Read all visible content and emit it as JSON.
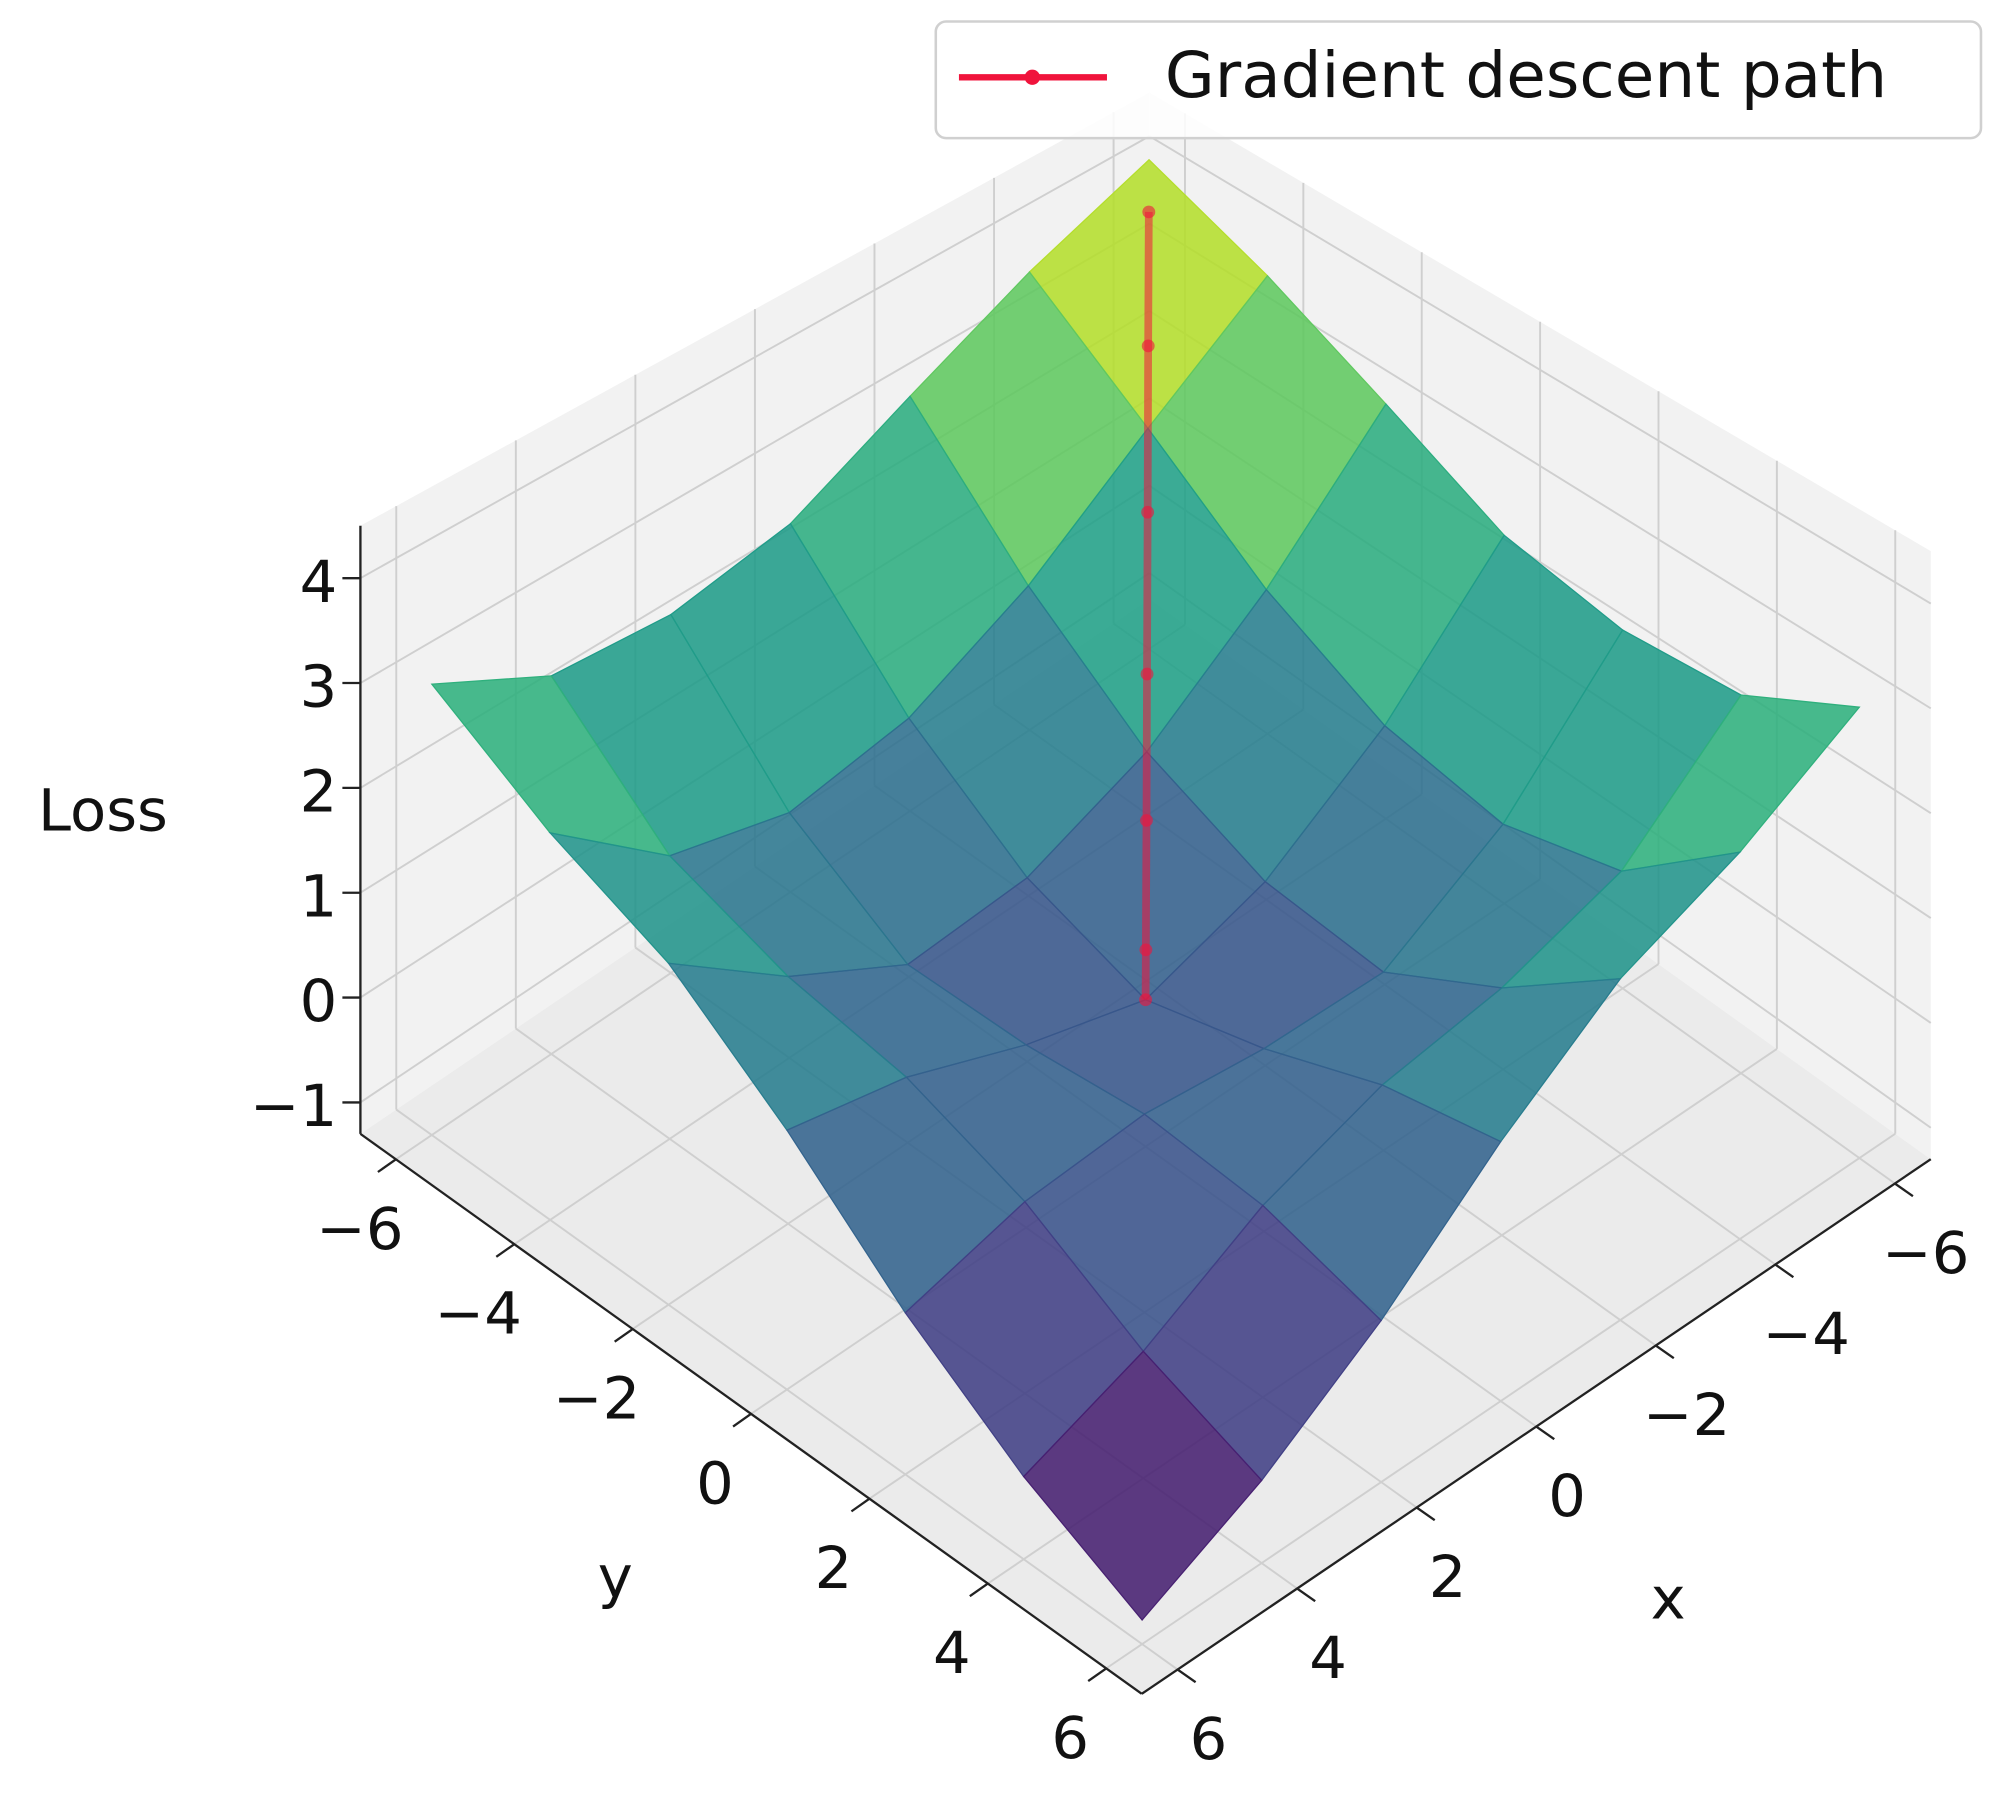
{
  "chart_data": {
    "type": "surface",
    "xlabel": "x",
    "ylabel": "y",
    "zlabel": "Loss",
    "colormap": "viridis",
    "x": [
      -6,
      -4,
      -2,
      0,
      2,
      4,
      6
    ],
    "y": [
      -6,
      -4,
      -2,
      0,
      2,
      4,
      6
    ],
    "z": [
      [
        4.2,
        3.7,
        3.1,
        2.5,
        2.3,
        2.4,
        3.0
      ],
      [
        3.7,
        2.8,
        1.9,
        1.3,
        1.1,
        1.4,
        2.3
      ],
      [
        3.1,
        1.9,
        1.0,
        0.5,
        0.4,
        1.0,
        1.8
      ],
      [
        2.5,
        1.3,
        0.5,
        0.1,
        0.4,
        0.8,
        1.0
      ],
      [
        2.3,
        1.1,
        0.4,
        0.4,
        0.5,
        0.4,
        0.1
      ],
      [
        2.4,
        1.4,
        1.0,
        0.8,
        0.4,
        -0.2,
        -0.6
      ],
      [
        3.0,
        2.3,
        1.8,
        1.0,
        0.1,
        -0.6,
        -1.1
      ]
    ],
    "xlim": [
      -6.6,
      6.6
    ],
    "ylim": [
      -6.6,
      6.6
    ],
    "zlim": [
      -1.3,
      4.5
    ],
    "xticks": [
      {
        "value": -6,
        "label": "−6"
      },
      {
        "value": -4,
        "label": "−4"
      },
      {
        "value": -2,
        "label": "−2"
      },
      0,
      2,
      4,
      6
    ],
    "yticks": [
      {
        "value": -6,
        "label": "−6"
      },
      {
        "value": -4,
        "label": "−4"
      },
      {
        "value": -2,
        "label": "−2"
      },
      0,
      2,
      4,
      6
    ],
    "zticks": [
      {
        "value": -1,
        "label": "−1"
      },
      0,
      1,
      2,
      3,
      4
    ],
    "grid": true,
    "legend": "upper right",
    "series": [
      {
        "name": "Gradient descent path",
        "color": "#f0143c",
        "x": [
          -5.5,
          -4.5,
          -3.5,
          -2.5,
          -1.5,
          -0.5,
          0
        ],
        "y": [
          -5.5,
          -4.5,
          -3.5,
          -2.5,
          -1.5,
          -0.5,
          0
        ],
        "z": [
          4.0,
          3.3,
          2.3,
          1.4,
          0.7,
          0.2,
          0.1
        ]
      }
    ]
  }
}
